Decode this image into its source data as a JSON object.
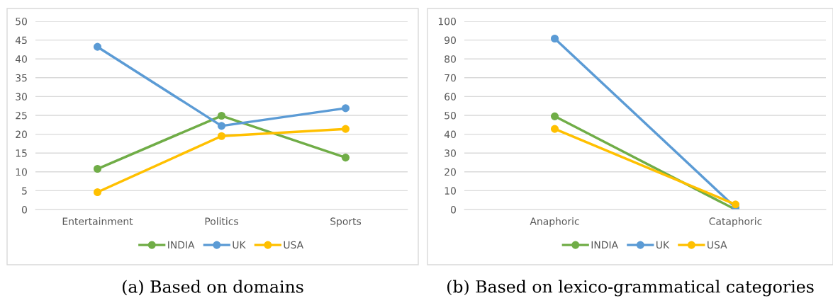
{
  "chart_data": [
    {
      "type": "line",
      "categories": [
        "Entertainment",
        "Politics",
        "Sports"
      ],
      "series": [
        {
          "name": "INDIA",
          "color": "#70ad47",
          "values": [
            10.8,
            24.9,
            13.8
          ]
        },
        {
          "name": "UK",
          "color": "#5b9bd5",
          "values": [
            43.2,
            22.2,
            26.9
          ]
        },
        {
          "name": "USA",
          "color": "#ffc000",
          "values": [
            4.6,
            19.5,
            21.4
          ]
        }
      ],
      "ylim": [
        0,
        50
      ],
      "yticks": [
        0,
        5,
        10,
        15,
        20,
        25,
        30,
        35,
        40,
        45,
        50
      ],
      "grid": "y",
      "legend": "bottom",
      "marker": "circle",
      "line_style": "solid",
      "annotations": [
        "(a) Based on domains"
      ]
    },
    {
      "type": "line",
      "categories": [
        "Anaphoric",
        "Cataphoric"
      ],
      "series": [
        {
          "name": "INDIA",
          "color": "#70ad47",
          "values": [
            49.5,
            0
          ]
        },
        {
          "name": "UK",
          "color": "#5b9bd5",
          "values": [
            90.8,
            1
          ]
        },
        {
          "name": "USA",
          "color": "#ffc000",
          "values": [
            42.8,
            2.7
          ]
        }
      ],
      "ylim": [
        0,
        100
      ],
      "yticks": [
        0,
        10,
        20,
        30,
        40,
        50,
        60,
        70,
        80,
        90,
        100
      ],
      "grid": "y",
      "legend": "bottom",
      "marker": "circle",
      "line_style": "solid",
      "annotations": [
        "(b) Based on lexico-grammatical categories"
      ]
    }
  ]
}
